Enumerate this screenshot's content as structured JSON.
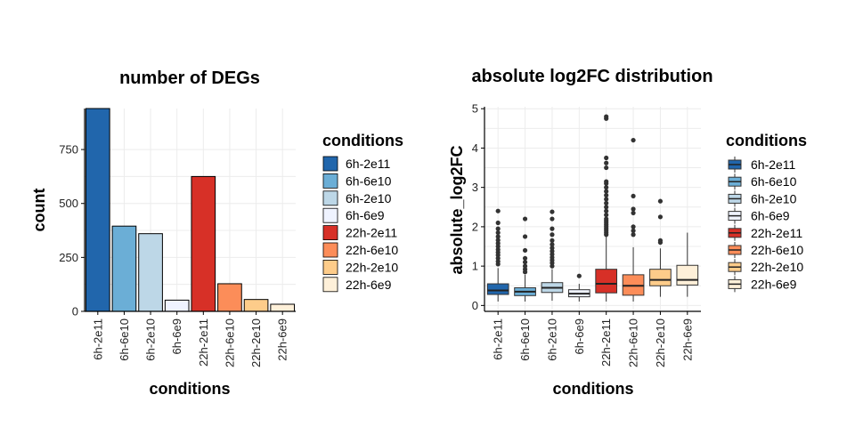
{
  "chart_data": [
    {
      "type": "bar",
      "title": "number of DEGs",
      "xlabel": "conditions",
      "ylabel": "count",
      "categories": [
        "6h-2e11",
        "6h-6e10",
        "6h-2e10",
        "6h-6e9",
        "22h-2e11",
        "22h-6e10",
        "22h-2e10",
        "22h-6e9"
      ],
      "values": [
        940,
        395,
        360,
        52,
        625,
        128,
        55,
        33
      ],
      "yticks": [
        0,
        250,
        500,
        750
      ],
      "ylim": [
        0,
        940
      ],
      "grid": true,
      "legend": {
        "title": "conditions",
        "placement": "right",
        "entries": [
          "6h-2e11",
          "6h-6e10",
          "6h-2e10",
          "6h-6e9",
          "22h-2e11",
          "22h-6e10",
          "22h-2e10",
          "22h-6e9"
        ]
      },
      "colors": [
        "#2166ac",
        "#6baed6",
        "#bdd7e7",
        "#eff3ff",
        "#d73027",
        "#fc8d59",
        "#fdcc8a",
        "#fef0d9"
      ]
    },
    {
      "type": "box",
      "title": "absolute log2FC distribution",
      "xlabel": "conditions",
      "ylabel": "absolute_log2FC",
      "categories": [
        "6h-2e11",
        "6h-6e10",
        "6h-2e10",
        "6h-6e9",
        "22h-2e11",
        "22h-6e10",
        "22h-2e10",
        "22h-6e9"
      ],
      "yticks": [
        0,
        1,
        2,
        3,
        4,
        5
      ],
      "ylim": [
        -0.15,
        5.05
      ],
      "grid": true,
      "boxes": [
        {
          "q1": 0.28,
          "median": 0.38,
          "q3": 0.55,
          "lower": 0.1,
          "upper": 0.95,
          "outliers": [
            1.05,
            1.12,
            1.2,
            1.28,
            1.35,
            1.42,
            1.5,
            1.58,
            1.66,
            1.75,
            1.85,
            1.95,
            2.1,
            2.4
          ]
        },
        {
          "q1": 0.25,
          "median": 0.35,
          "q3": 0.45,
          "lower": 0.1,
          "upper": 0.78,
          "outliers": [
            0.85,
            0.92,
            1.0,
            1.1,
            1.2,
            1.4,
            1.75,
            2.2
          ]
        },
        {
          "q1": 0.33,
          "median": 0.45,
          "q3": 0.58,
          "lower": 0.12,
          "upper": 0.92,
          "outliers": [
            1.0,
            1.08,
            1.15,
            1.22,
            1.3,
            1.38,
            1.46,
            1.55,
            1.65,
            1.8,
            1.95,
            2.2,
            2.38
          ]
        },
        {
          "q1": 0.22,
          "median": 0.3,
          "q3": 0.4,
          "lower": 0.1,
          "upper": 0.55,
          "outliers": [
            0.75
          ]
        },
        {
          "q1": 0.32,
          "median": 0.55,
          "q3": 0.92,
          "lower": 0.1,
          "upper": 1.75,
          "outliers": [
            1.8,
            1.85,
            1.9,
            1.95,
            2.0,
            2.05,
            2.1,
            2.15,
            2.2,
            2.3,
            2.4,
            2.5,
            2.6,
            2.7,
            2.8,
            2.9,
            3.0,
            3.1,
            3.15,
            3.5,
            3.62,
            3.75,
            4.75,
            4.8
          ]
        },
        {
          "q1": 0.26,
          "median": 0.5,
          "q3": 0.78,
          "lower": 0.1,
          "upper": 1.48,
          "outliers": [
            1.8,
            1.9,
            2.0,
            2.35,
            2.45,
            2.78,
            4.2
          ]
        },
        {
          "q1": 0.5,
          "median": 0.65,
          "q3": 0.92,
          "lower": 0.22,
          "upper": 1.45,
          "outliers": [
            1.6,
            1.65,
            2.25,
            2.65
          ]
        },
        {
          "q1": 0.52,
          "median": 0.65,
          "q3": 1.02,
          "lower": 0.22,
          "upper": 1.85,
          "outliers": []
        }
      ],
      "legend": {
        "title": "conditions",
        "placement": "right",
        "entries": [
          "6h-2e11",
          "6h-6e10",
          "6h-2e10",
          "6h-6e9",
          "22h-2e11",
          "22h-6e10",
          "22h-2e10",
          "22h-6e9"
        ]
      },
      "colors": [
        "#2166ac",
        "#6baed6",
        "#bdd7e7",
        "#eff3ff",
        "#d73027",
        "#fc8d59",
        "#fdcc8a",
        "#fef0d9"
      ]
    }
  ]
}
